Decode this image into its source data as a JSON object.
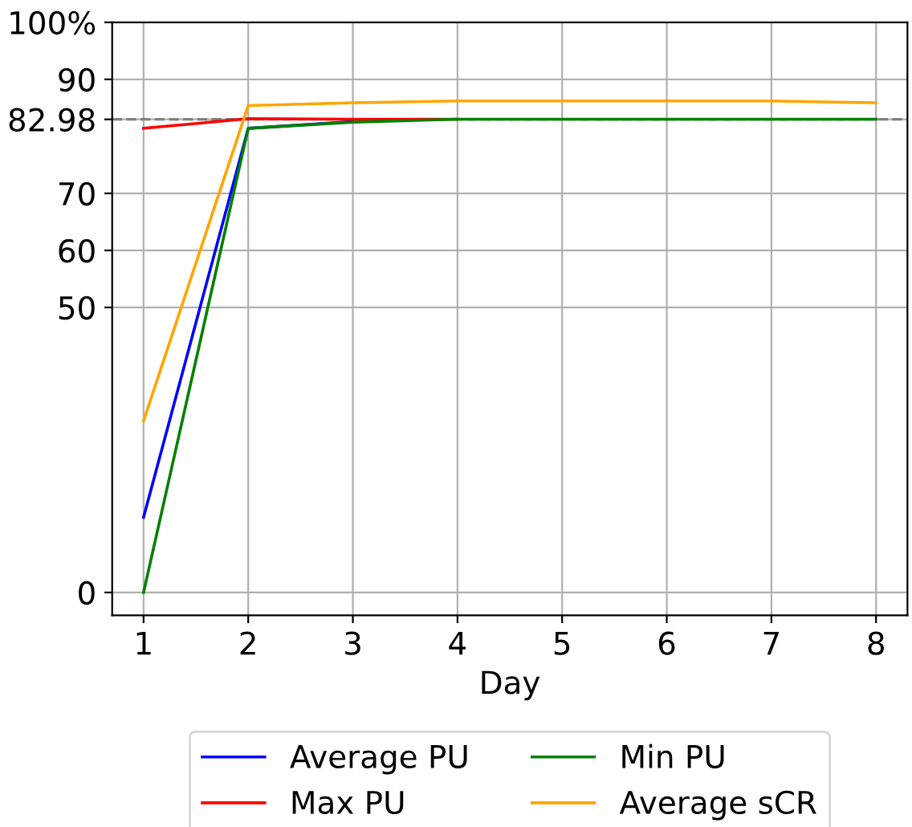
{
  "chart_data": {
    "type": "line",
    "xlabel": "Day",
    "x": [
      1,
      2,
      3,
      4,
      5,
      6,
      7,
      8
    ],
    "series": [
      {
        "name": "Average PU",
        "color": "#0000ff",
        "values": [
          13.2,
          81.4,
          82.6,
          null,
          null,
          null,
          null,
          null
        ]
      },
      {
        "name": "Max PU",
        "color": "#ff0000",
        "values": [
          81.4,
          83.1,
          83,
          83,
          null,
          null,
          null,
          null
        ]
      },
      {
        "name": "Min PU",
        "color": "#008000",
        "values": [
          0,
          81.4,
          82.5,
          83,
          83,
          83,
          83,
          83
        ]
      },
      {
        "name": "Average sCR",
        "color": "#ffa500",
        "values": [
          30.1,
          85.4,
          85.9,
          86.2,
          86.2,
          86.2,
          86.2,
          85.9
        ]
      }
    ],
    "xlim": [
      0.7,
      8.3
    ],
    "xticks": [
      1,
      2,
      3,
      4,
      5,
      6,
      7,
      8
    ],
    "ylim": [
      -4,
      100
    ],
    "yticks": [
      0,
      50,
      60,
      70,
      82.98,
      90,
      {
        "value": 100,
        "label": "100%"
      }
    ],
    "ref_lines": [
      {
        "axis": "y",
        "value": 82.98,
        "color": "#808080",
        "line_style": "dashed"
      }
    ],
    "grid": true,
    "legend": "bottom",
    "marker": "none",
    "line_style": "solid"
  }
}
